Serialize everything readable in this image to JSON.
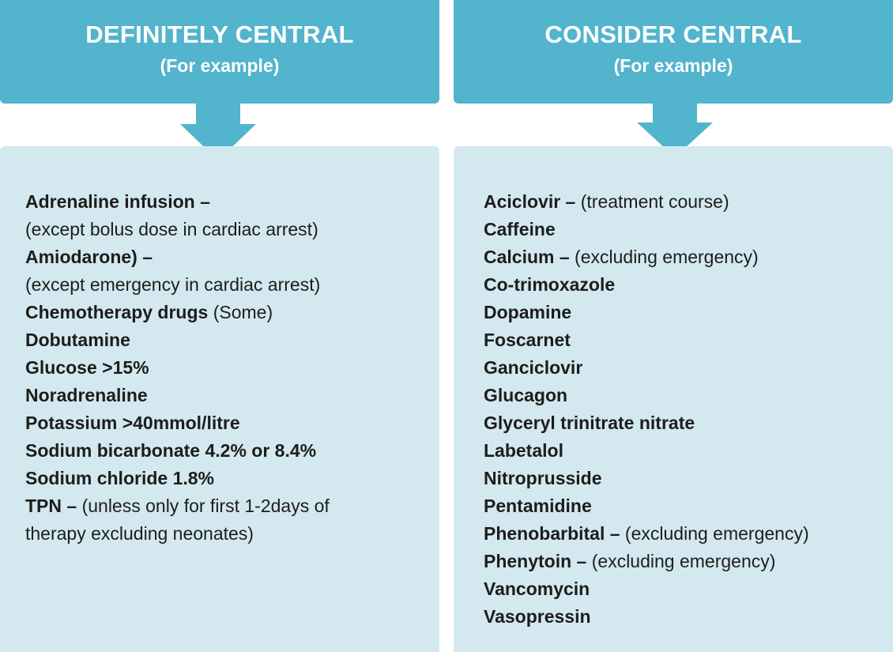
{
  "columns": [
    {
      "title": "DEFINITELY CENTRAL",
      "subtitle": "(For example)",
      "lines": [
        {
          "bold": "Adrenaline infusion –",
          "normal": ""
        },
        {
          "bold": "",
          "normal": "(except bolus dose in cardiac arrest)"
        },
        {
          "bold": "Amiodarone) –",
          "normal": ""
        },
        {
          "bold": "",
          "normal": "(except emergency in cardiac arrest)"
        },
        {
          "bold": "Chemotherapy drugs",
          "normal": " (Some)"
        },
        {
          "bold": "Dobutamine",
          "normal": ""
        },
        {
          "bold": "Glucose >15%",
          "normal": ""
        },
        {
          "bold": "Noradrenaline",
          "normal": ""
        },
        {
          "bold": "Potassium >40mmol/litre",
          "normal": ""
        },
        {
          "bold": "Sodium bicarbonate 4.2% or 8.4%",
          "normal": ""
        },
        {
          "bold": "Sodium chloride 1.8%",
          "normal": ""
        },
        {
          "bold": "TPN –",
          "normal": " (unless only for first 1-2days of"
        },
        {
          "bold": "",
          "normal": "therapy excluding neonates)"
        }
      ]
    },
    {
      "title": "CONSIDER CENTRAL",
      "subtitle": "(For example)",
      "lines": [
        {
          "bold": "Aciclovir –",
          "normal": " (treatment course)"
        },
        {
          "bold": "Caffeine",
          "normal": ""
        },
        {
          "bold": "Calcium –",
          "normal": " (excluding emergency)"
        },
        {
          "bold": "Co-trimoxazole",
          "normal": ""
        },
        {
          "bold": "Dopamine",
          "normal": ""
        },
        {
          "bold": "Foscarnet",
          "normal": ""
        },
        {
          "bold": "Ganciclovir",
          "normal": ""
        },
        {
          "bold": "Glucagon",
          "normal": ""
        },
        {
          "bold": "Glyceryl trinitrate nitrate",
          "normal": ""
        },
        {
          "bold": "Labetalol",
          "normal": ""
        },
        {
          "bold": "Nitroprusside",
          "normal": ""
        },
        {
          "bold": "Pentamidine",
          "normal": ""
        },
        {
          "bold": "Phenobarbital –",
          "normal": " (excluding emergency)"
        },
        {
          "bold": "Phenytoin –",
          "normal": " (excluding emergency)"
        },
        {
          "bold": "Vancomycin",
          "normal": ""
        },
        {
          "bold": "Vasopressin",
          "normal": ""
        }
      ]
    }
  ],
  "colors": {
    "header": "#52b4cd",
    "panel": "#d3e9ef",
    "text": "#1d1d1b"
  }
}
